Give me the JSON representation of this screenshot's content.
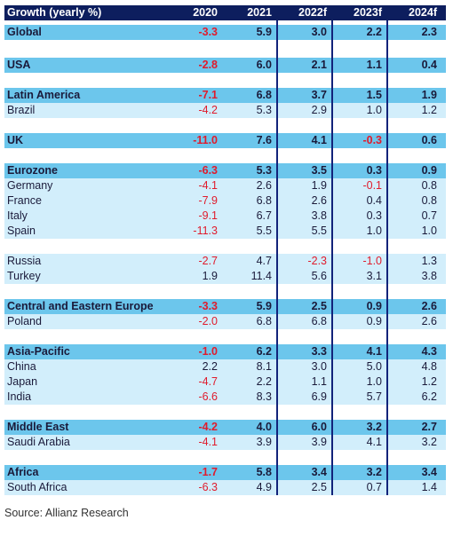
{
  "chart_data": {
    "type": "table",
    "columns": [
      "Growth (yearly %)",
      "2020",
      "2021",
      "2022f",
      "2023f",
      "2024f"
    ],
    "rows": [
      {
        "region": "Global",
        "level": "group",
        "values": [
          "-3.3",
          "5.9",
          "3.0",
          "2.2",
          "2.3"
        ]
      },
      {
        "region": "USA",
        "level": "group",
        "values": [
          "-2.8",
          "6.0",
          "2.1",
          "1.1",
          "0.4"
        ]
      },
      {
        "region": "Latin America",
        "level": "group",
        "values": [
          "-7.1",
          "6.8",
          "3.7",
          "1.5",
          "1.9"
        ]
      },
      {
        "region": "Brazil",
        "level": "sub",
        "values": [
          "-4.2",
          "5.3",
          "2.9",
          "1.0",
          "1.2"
        ]
      },
      {
        "region": "UK",
        "level": "group",
        "values": [
          "-11.0",
          "7.6",
          "4.1",
          "-0.3",
          "0.6"
        ]
      },
      {
        "region": "Eurozone",
        "level": "group",
        "values": [
          "-6.3",
          "5.3",
          "3.5",
          "0.3",
          "0.9"
        ]
      },
      {
        "region": "Germany",
        "level": "sub",
        "values": [
          "-4.1",
          "2.6",
          "1.9",
          "-0.1",
          "0.8"
        ]
      },
      {
        "region": "France",
        "level": "sub",
        "values": [
          "-7.9",
          "6.8",
          "2.6",
          "0.4",
          "0.8"
        ]
      },
      {
        "region": "Italy",
        "level": "sub",
        "values": [
          "-9.1",
          "6.7",
          "3.8",
          "0.3",
          "0.7"
        ]
      },
      {
        "region": "Spain",
        "level": "sub",
        "values": [
          "-11.3",
          "5.5",
          "5.5",
          "1.0",
          "1.0"
        ]
      },
      {
        "region": "Russia",
        "level": "sub",
        "values": [
          "-2.7",
          "4.7",
          "-2.3",
          "-1.0",
          "1.3"
        ]
      },
      {
        "region": "Turkey",
        "level": "sub",
        "values": [
          "1.9",
          "11.4",
          "5.6",
          "3.1",
          "3.8"
        ]
      },
      {
        "region": "Central and Eastern Europe",
        "level": "group",
        "values": [
          "-3.3",
          "5.9",
          "2.5",
          "0.9",
          "2.6"
        ]
      },
      {
        "region": "Poland",
        "level": "sub",
        "values": [
          "-2.0",
          "6.8",
          "6.8",
          "0.9",
          "2.6"
        ]
      },
      {
        "region": "Asia-Pacific",
        "level": "group",
        "values": [
          "-1.0",
          "6.2",
          "3.3",
          "4.1",
          "4.3"
        ]
      },
      {
        "region": "China",
        "level": "sub",
        "values": [
          "2.2",
          "8.1",
          "3.0",
          "5.0",
          "4.8"
        ]
      },
      {
        "region": "Japan",
        "level": "sub",
        "values": [
          "-4.7",
          "2.2",
          "1.1",
          "1.0",
          "1.2"
        ]
      },
      {
        "region": "India",
        "level": "sub",
        "values": [
          "-6.6",
          "8.3",
          "6.9",
          "5.7",
          "6.2"
        ]
      },
      {
        "region": "Middle East",
        "level": "group",
        "values": [
          "-4.2",
          "4.0",
          "6.0",
          "3.2",
          "2.7"
        ]
      },
      {
        "region": "Saudi Arabia",
        "level": "sub",
        "values": [
          "-4.1",
          "3.9",
          "3.9",
          "4.1",
          "3.2"
        ]
      },
      {
        "region": "Africa",
        "level": "group",
        "values": [
          "-1.7",
          "5.8",
          "3.4",
          "3.2",
          "3.4"
        ]
      },
      {
        "region": "South Africa",
        "level": "sub",
        "values": [
          "-6.3",
          "4.9",
          "2.5",
          "0.7",
          "1.4"
        ]
      }
    ]
  },
  "source": "Source: Allianz Research",
  "colors": {
    "header": "#0d1e5e",
    "group": "#6cc6ec",
    "sub": "#d2eefb",
    "negative": "#e01b2c",
    "divider": "#12237a"
  }
}
